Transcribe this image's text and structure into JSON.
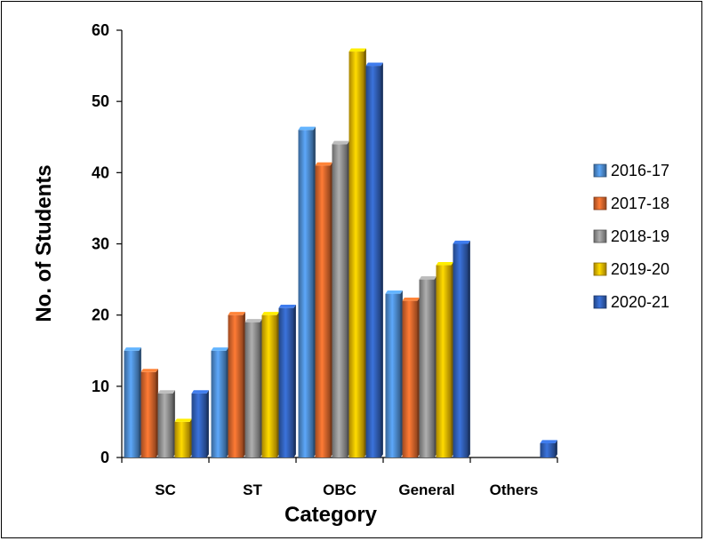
{
  "chart_data": {
    "type": "bar",
    "title": "",
    "xlabel": "Category",
    "ylabel": "No. of Students",
    "categories": [
      "SC",
      "ST",
      "OBC",
      "General",
      "Others"
    ],
    "ylim": [
      0,
      60
    ],
    "yticks": [
      0,
      10,
      20,
      30,
      40,
      50,
      60
    ],
    "grid": false,
    "legend": "right",
    "series": [
      {
        "name": "2016-17",
        "color": "#4a86c8",
        "values": [
          15,
          15,
          46,
          23,
          0
        ]
      },
      {
        "name": "2017-18",
        "color": "#d4622a",
        "values": [
          12,
          20,
          41,
          22,
          0
        ]
      },
      {
        "name": "2018-19",
        "color": "#8c8c8c",
        "values": [
          9,
          19,
          44,
          25,
          0
        ]
      },
      {
        "name": "2019-20",
        "color": "#e0b000",
        "values": [
          5,
          20,
          57,
          27,
          0
        ]
      },
      {
        "name": "2020-21",
        "color": "#2f5cb0",
        "values": [
          9,
          21,
          55,
          30,
          2
        ]
      }
    ]
  }
}
